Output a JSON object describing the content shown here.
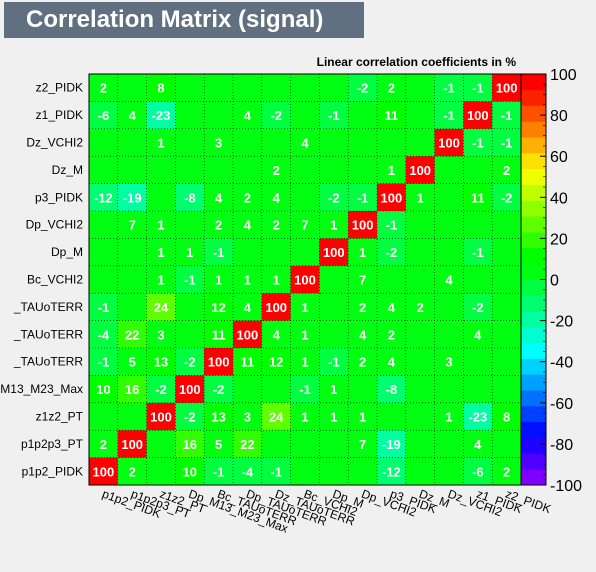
{
  "title": "Correlation Matrix (signal)",
  "subtitle": "Linear correlation coefficients in %",
  "chart_data": {
    "type": "heatmap",
    "title": "Correlation Matrix (signal)",
    "subtitle": "Linear correlation coefficients in %",
    "variables": [
      "p1p2_PIDK",
      "p1p2p3_PT",
      "z1z2_PT",
      "Dp_M13_M23_Max",
      "Bc_TAUoTERR",
      "Dp_TAUoTERR",
      "Dz_TAUoTERR",
      "Bc_VCHI2",
      "Dp_M",
      "Dp_VCHI2",
      "p3_PIDK",
      "Dz_M",
      "Dz_VCHI2",
      "z1_PIDK",
      "z2_PIDK"
    ],
    "y_labels_visible": [
      "p1p2_PIDK",
      "p1p2p3_PT",
      "z1z2_PT",
      "M13_M23_Max",
      "_TAUoTERR",
      "_TAUoTERR",
      "_TAUoTERR",
      "Bc_VCHI2",
      "Dp_M",
      "Dp_VCHI2",
      "p3_PIDK",
      "Dz_M",
      "Dz_VCHI2",
      "z1_PIDK",
      "z2_PIDK"
    ],
    "x_labels_visible": [
      "p1p2_PIDK",
      "p1p2p3_PT",
      "z1z2_PT",
      "Dp_M13_M23_Max",
      "Bc_TAUoTERR",
      "Dp_TAUoTERR",
      "Dz_TAUoTERR",
      "Bc_VCHI2",
      "Dp_M",
      "Dp_VCHI2",
      "p3_PIDK",
      "Dz_M",
      "Dz_VCHI2",
      "z1_PIDK",
      "z2_PIDK"
    ],
    "matrix": [
      [
        100,
        2,
        null,
        10,
        -1,
        -4,
        -1,
        null,
        null,
        null,
        -12,
        null,
        null,
        -6,
        2
      ],
      [
        2,
        100,
        null,
        16,
        5,
        22,
        null,
        null,
        null,
        7,
        -19,
        null,
        null,
        4,
        null
      ],
      [
        null,
        null,
        100,
        -2,
        13,
        3,
        24,
        1,
        1,
        1,
        null,
        null,
        1,
        -23,
        8
      ],
      [
        10,
        16,
        -2,
        100,
        -2,
        null,
        null,
        -1,
        1,
        null,
        -8,
        null,
        null,
        null,
        null
      ],
      [
        -1,
        5,
        13,
        -2,
        100,
        11,
        12,
        1,
        -1,
        2,
        4,
        null,
        3,
        null,
        null
      ],
      [
        -4,
        22,
        3,
        null,
        11,
        100,
        4,
        1,
        null,
        4,
        2,
        null,
        null,
        4,
        null
      ],
      [
        -1,
        null,
        24,
        null,
        12,
        4,
        100,
        1,
        null,
        2,
        4,
        2,
        null,
        -2,
        null
      ],
      [
        null,
        null,
        1,
        -1,
        1,
        1,
        1,
        100,
        null,
        7,
        null,
        null,
        4,
        null,
        null
      ],
      [
        null,
        null,
        1,
        1,
        -1,
        null,
        null,
        null,
        100,
        1,
        -2,
        null,
        null,
        -1,
        null
      ],
      [
        null,
        7,
        1,
        null,
        2,
        4,
        2,
        7,
        1,
        100,
        -1,
        null,
        null,
        null,
        null
      ],
      [
        -12,
        -19,
        null,
        -8,
        4,
        2,
        4,
        null,
        -2,
        -1,
        100,
        1,
        null,
        11,
        -2
      ],
      [
        null,
        null,
        null,
        null,
        null,
        null,
        2,
        null,
        null,
        null,
        1,
        100,
        null,
        null,
        2
      ],
      [
        null,
        null,
        1,
        null,
        3,
        null,
        null,
        4,
        null,
        null,
        null,
        null,
        100,
        -1,
        -1
      ],
      [
        -6,
        4,
        -23,
        null,
        null,
        4,
        -2,
        null,
        -1,
        null,
        11,
        null,
        -1,
        100,
        -1
      ],
      [
        2,
        null,
        8,
        null,
        null,
        null,
        null,
        null,
        null,
        -2,
        2,
        null,
        -1,
        -1,
        100
      ]
    ],
    "zlim": [
      -100,
      100
    ],
    "z_ticks": [
      -100,
      -80,
      -60,
      -40,
      -20,
      0,
      20,
      40,
      60,
      80,
      100
    ],
    "grid": true,
    "palette": [
      "#8000ff",
      "#5000ff",
      "#2000ff",
      "#0010ff",
      "#0040ff",
      "#0070ff",
      "#00a0ff",
      "#00d0ff",
      "#00ffff",
      "#00ffd0",
      "#00ffa0",
      "#00ff70",
      "#00ff40",
      "#00ff10",
      "#00ff00",
      "#30ff00",
      "#60ff00",
      "#90ff00",
      "#c0ff00",
      "#f0ff00",
      "#ffe000",
      "#ffb000",
      "#ff8000",
      "#ff5000",
      "#ff2000",
      "#ff0000"
    ]
  }
}
